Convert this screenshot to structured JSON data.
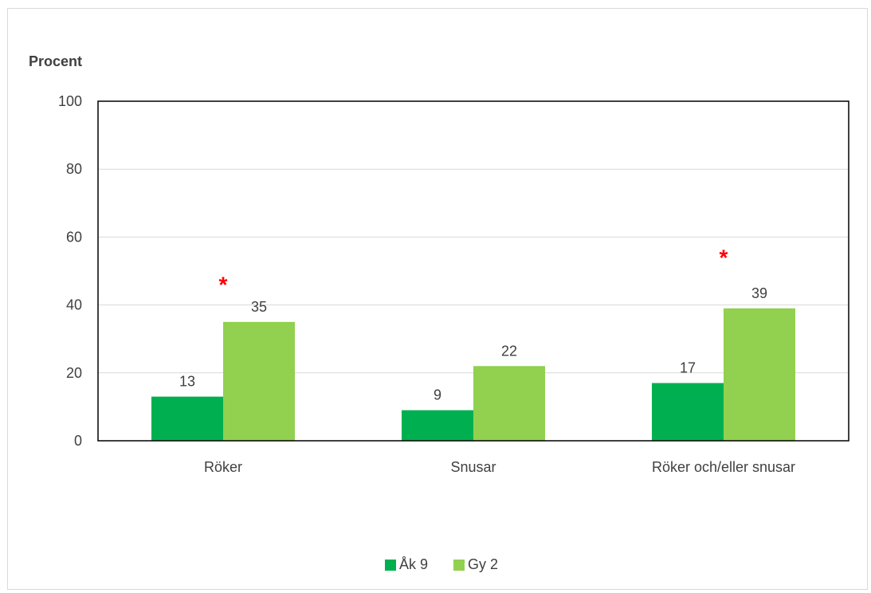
{
  "chart_data": {
    "type": "bar",
    "title": "",
    "xlabel": "",
    "ylabel": "Procent",
    "ylim": [
      0,
      100
    ],
    "yticks": [
      0,
      20,
      40,
      60,
      80,
      100
    ],
    "categories": [
      "Röker",
      "Snusar",
      "Röker och/eller snusar"
    ],
    "series": [
      {
        "name": "Åk 9",
        "values": [
          13,
          9,
          17
        ],
        "color": "#00b050"
      },
      {
        "name": "Gy 2",
        "values": [
          35,
          22,
          39
        ],
        "color": "#92d050"
      }
    ],
    "value_labels": [
      [
        "13",
        "9",
        "17"
      ],
      [
        "35",
        "22",
        "39"
      ]
    ],
    "significance_markers": [
      {
        "category": "Röker",
        "label": "*",
        "y": 48
      },
      {
        "category": "Röker och/eller snusar",
        "label": "*",
        "y": 56
      }
    ],
    "significance_color": "#ff0000",
    "grid": true,
    "legend_position": "bottom"
  }
}
